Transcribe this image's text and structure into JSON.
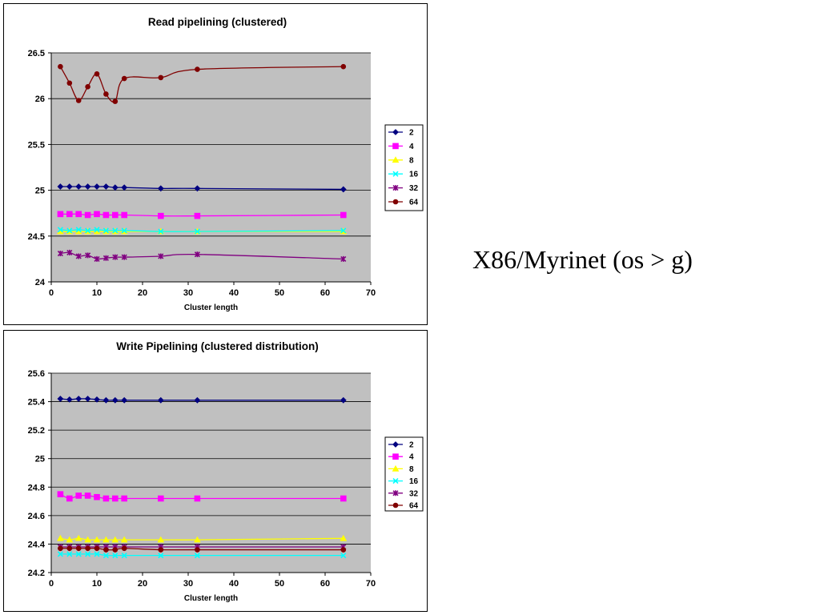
{
  "side_title": "X86/Myrinet (os > g)",
  "chart_data": [
    {
      "type": "line",
      "title": "Read pipelining (clustered)",
      "xlabel": "Cluster length",
      "ylabel": "",
      "xlim": [
        0,
        70
      ],
      "ylim": [
        24,
        26.5
      ],
      "xticks": [
        "0",
        "10",
        "20",
        "30",
        "40",
        "50",
        "60",
        "70"
      ],
      "yticks": [
        "24",
        "24.5",
        "25",
        "25.5",
        "26",
        "26.5"
      ],
      "grid": "horizontal",
      "legend_position": "right",
      "series": [
        {
          "name": "2",
          "color": "#000080",
          "marker": "diamond",
          "x": [
            2,
            4,
            6,
            8,
            10,
            12,
            14,
            16,
            24,
            32,
            64
          ],
          "y": [
            25.04,
            25.04,
            25.04,
            25.04,
            25.04,
            25.04,
            25.03,
            25.03,
            25.02,
            25.02,
            25.01
          ]
        },
        {
          "name": "4",
          "color": "#ff00ff",
          "marker": "square",
          "x": [
            2,
            4,
            6,
            8,
            10,
            12,
            14,
            16,
            24,
            32,
            64
          ],
          "y": [
            24.74,
            24.74,
            24.74,
            24.73,
            24.74,
            24.73,
            24.73,
            24.73,
            24.72,
            24.72,
            24.73
          ]
        },
        {
          "name": "8",
          "color": "#ffff00",
          "marker": "triangle",
          "x": [
            2,
            4,
            6,
            8,
            10,
            12,
            14,
            16,
            24,
            32,
            64
          ],
          "y": [
            24.55,
            24.55,
            24.55,
            24.55,
            24.55,
            24.55,
            24.55,
            24.55,
            24.55,
            24.55,
            24.55
          ]
        },
        {
          "name": "16",
          "color": "#00ffff",
          "marker": "x",
          "x": [
            2,
            4,
            6,
            8,
            10,
            12,
            14,
            16,
            24,
            32,
            64
          ],
          "y": [
            24.57,
            24.56,
            24.57,
            24.56,
            24.57,
            24.56,
            24.56,
            24.56,
            24.55,
            24.55,
            24.56
          ]
        },
        {
          "name": "32",
          "color": "#800080",
          "marker": "star",
          "x": [
            2,
            4,
            6,
            8,
            10,
            12,
            14,
            16,
            24,
            32,
            64
          ],
          "y": [
            24.31,
            24.32,
            24.28,
            24.29,
            24.25,
            24.26,
            24.27,
            24.27,
            24.28,
            24.3,
            24.25
          ]
        },
        {
          "name": "64",
          "color": "#800000",
          "marker": "circle",
          "x": [
            2,
            4,
            6,
            8,
            10,
            12,
            14,
            16,
            24,
            32,
            64
          ],
          "y": [
            26.35,
            26.17,
            25.98,
            26.13,
            26.27,
            26.05,
            25.97,
            26.22,
            26.23,
            26.32,
            26.35
          ]
        }
      ]
    },
    {
      "type": "line",
      "title": "Write Pipelining (clustered distribution)",
      "xlabel": "Cluster length",
      "ylabel": "",
      "xlim": [
        0,
        70
      ],
      "ylim": [
        24.2,
        25.6
      ],
      "xticks": [
        "0",
        "10",
        "20",
        "30",
        "40",
        "50",
        "60",
        "70"
      ],
      "yticks": [
        "24.2",
        "24.4",
        "24.6",
        "24.8",
        "25",
        "25.2",
        "25.4",
        "25.6"
      ],
      "grid": "horizontal",
      "legend_position": "right",
      "series": [
        {
          "name": "2",
          "color": "#000080",
          "marker": "diamond",
          "x": [
            2,
            4,
            6,
            8,
            10,
            12,
            14,
            16,
            24,
            32,
            64
          ],
          "y": [
            25.42,
            25.415,
            25.42,
            25.42,
            25.415,
            25.41,
            25.41,
            25.41,
            25.41,
            25.41,
            25.41
          ]
        },
        {
          "name": "4",
          "color": "#ff00ff",
          "marker": "square",
          "x": [
            2,
            4,
            6,
            8,
            10,
            12,
            14,
            16,
            24,
            32,
            64
          ],
          "y": [
            24.75,
            24.72,
            24.74,
            24.74,
            24.73,
            24.72,
            24.72,
            24.72,
            24.72,
            24.72,
            24.72
          ]
        },
        {
          "name": "8",
          "color": "#ffff00",
          "marker": "triangle",
          "x": [
            2,
            4,
            6,
            8,
            10,
            12,
            14,
            16,
            24,
            32,
            64
          ],
          "y": [
            24.44,
            24.43,
            24.44,
            24.43,
            24.43,
            24.43,
            24.43,
            24.43,
            24.43,
            24.43,
            24.44
          ]
        },
        {
          "name": "16",
          "color": "#00ffff",
          "marker": "x",
          "x": [
            2,
            4,
            6,
            8,
            10,
            12,
            14,
            16,
            24,
            32,
            64
          ],
          "y": [
            24.33,
            24.33,
            24.33,
            24.33,
            24.33,
            24.32,
            24.32,
            24.32,
            24.32,
            24.32,
            24.32
          ]
        },
        {
          "name": "32",
          "color": "#800080",
          "marker": "star",
          "x": [
            2,
            4,
            6,
            8,
            10,
            12,
            14,
            16,
            24,
            32,
            64
          ],
          "y": [
            24.38,
            24.38,
            24.38,
            24.38,
            24.38,
            24.38,
            24.38,
            24.38,
            24.38,
            24.38,
            24.38
          ]
        },
        {
          "name": "64",
          "color": "#800000",
          "marker": "circle",
          "x": [
            2,
            4,
            6,
            8,
            10,
            12,
            14,
            16,
            24,
            32,
            64
          ],
          "y": [
            24.37,
            24.37,
            24.37,
            24.37,
            24.37,
            24.36,
            24.36,
            24.37,
            24.36,
            24.36,
            24.36
          ]
        }
      ]
    }
  ]
}
